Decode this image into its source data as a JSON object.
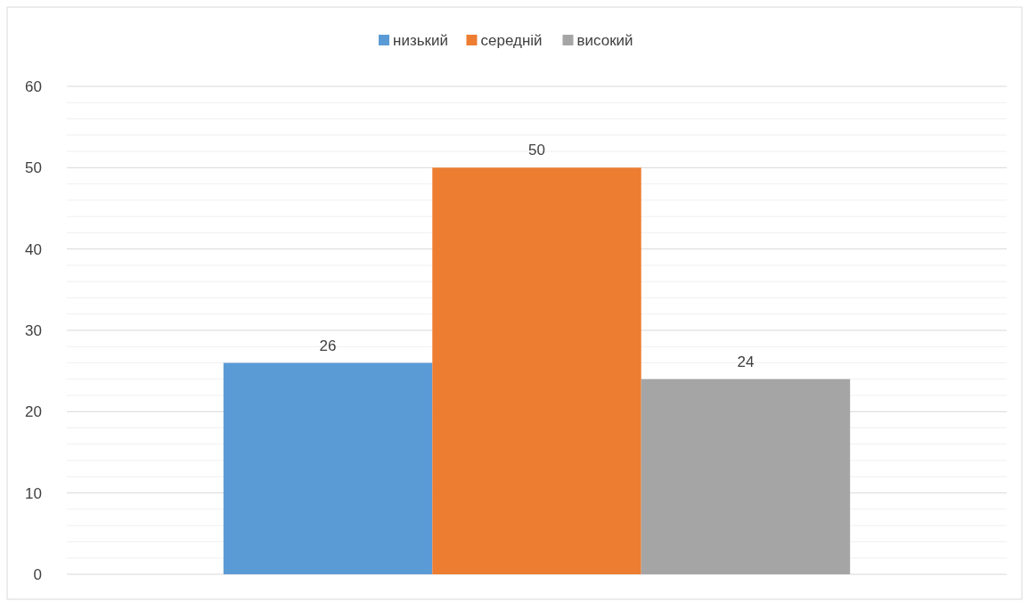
{
  "chart_data": {
    "type": "bar",
    "categories": [
      null
    ],
    "series": [
      {
        "name": "низький",
        "color": "#5b9bd5",
        "values": [
          26
        ]
      },
      {
        "name": "середній",
        "color": "#ed7d31",
        "values": [
          50
        ]
      },
      {
        "name": "високий",
        "color": "#a5a5a5",
        "values": [
          24
        ]
      }
    ],
    "ylim": [
      0,
      60
    ],
    "yticks": [
      0,
      {
        "value": 2,
        "label": null
      },
      {
        "value": 4,
        "label": null
      },
      {
        "value": 6,
        "label": null
      },
      {
        "value": 8,
        "label": null
      },
      10,
      {
        "value": 12,
        "label": null
      },
      {
        "value": 14,
        "label": null
      },
      {
        "value": 16,
        "label": null
      },
      {
        "value": 18,
        "label": null
      },
      20,
      {
        "value": 22,
        "label": null
      },
      {
        "value": 24,
        "label": null
      },
      {
        "value": 26,
        "label": null
      },
      {
        "value": 28,
        "label": null
      },
      30,
      {
        "value": 32,
        "label": null
      },
      {
        "value": 34,
        "label": null
      },
      {
        "value": 36,
        "label": null
      },
      {
        "value": 38,
        "label": null
      },
      40,
      {
        "value": 42,
        "label": null
      },
      {
        "value": 44,
        "label": null
      },
      {
        "value": 46,
        "label": null
      },
      {
        "value": 48,
        "label": null
      },
      50,
      {
        "value": 52,
        "label": null
      },
      {
        "value": 54,
        "label": null
      },
      {
        "value": 56,
        "label": null
      },
      {
        "value": 58,
        "label": null
      },
      60
    ],
    "grid": true,
    "legend": "top",
    "data_labels": true
  }
}
